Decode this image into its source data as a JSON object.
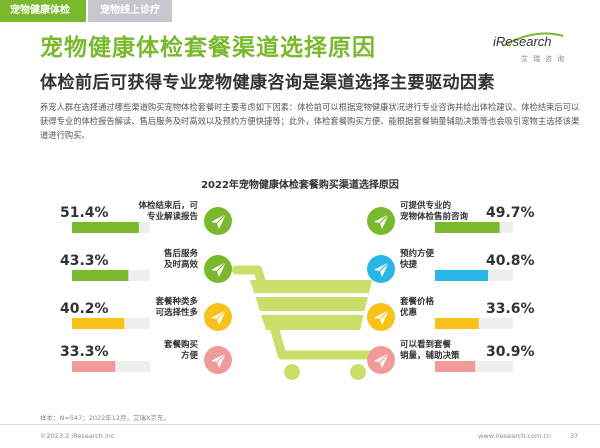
{
  "tabs": [
    {
      "label": "宠物健康体检",
      "active": true
    },
    {
      "label": "宠物线上诊疗",
      "active": false
    }
  ],
  "logo": {
    "text": "iResearch",
    "sub": "艾瑞咨询"
  },
  "title_main": "宠物健康体检套餐渠道选择原因",
  "title_sub": "体检前后可获得专业宠物健康咨询是渠道选择主要驱动因素",
  "description": "养宠人群在选择通过哪些渠道购买宠物体检套餐时主要考虑如下因素：体检前可以根据宠物健康状况进行专业咨询并给出体检建议、体检结束后可以获得专业的体检报告解读、售后服务及时高效以及预约方便快捷等；此外，体检套餐购买方便、能根据套餐销量辅助决策等也会吸引宠物主选择该渠道进行购买。",
  "colors": {
    "green": "#7ab82e",
    "blue": "#29b6e8",
    "yellow": "#f7c31a",
    "pink": "#f19a9a",
    "track": "#eeeeee",
    "cart": "#c8e06a"
  },
  "chart_data": {
    "type": "bar",
    "title": "2022年宠物健康体检套餐购买渠道选择原因",
    "unit": "%",
    "left": [
      {
        "label_lines": [
          "体检结束后，可",
          "专业解读报告"
        ],
        "value": 51.4,
        "display": "51.4%",
        "color": "#7ab82e"
      },
      {
        "label_lines": [
          "售后服务",
          "及时高效"
        ],
        "value": 43.3,
        "display": "43.3%",
        "color": "#7ab82e"
      },
      {
        "label_lines": [
          "套餐种类多",
          "可选择性多"
        ],
        "value": 40.2,
        "display": "40.2%",
        "color": "#f7c31a"
      },
      {
        "label_lines": [
          "套餐购买",
          "方便"
        ],
        "value": 33.3,
        "display": "33.3%",
        "color": "#f19a9a"
      }
    ],
    "right": [
      {
        "label_lines": [
          "可提供专业的",
          "宠物体检售前咨询"
        ],
        "value": 49.7,
        "display": "49.7%",
        "color": "#7ab82e"
      },
      {
        "label_lines": [
          "预约方便",
          "快捷"
        ],
        "value": 40.8,
        "display": "40.8%",
        "color": "#29b6e8"
      },
      {
        "label_lines": [
          "套餐价格",
          "优惠"
        ],
        "value": 33.6,
        "display": "33.6%",
        "color": "#f7c31a"
      },
      {
        "label_lines": [
          "可以看到套餐",
          "销量，辅助决策"
        ],
        "value": 30.9,
        "display": "30.9%",
        "color": "#f19a9a"
      }
    ]
  },
  "footer": {
    "source": "样本：N=547；2022年12月，艾瑞X京东。",
    "copyright": "©2023.2 iResearch Inc.",
    "url": "www.iresearch.com.cn",
    "page": "37"
  }
}
